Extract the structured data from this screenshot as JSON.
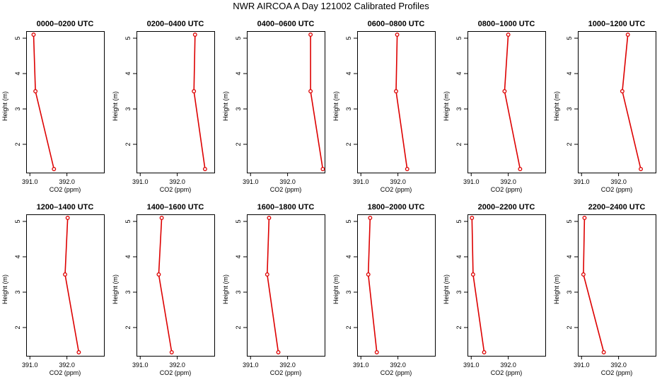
{
  "figure_title": "NWR AIRCOA A  Day 121002  Calibrated Profiles",
  "colors": {
    "line": "#dd0000",
    "axis": "#000000",
    "text": "#000000"
  },
  "chart_data": [
    {
      "type": "line",
      "title": "0000–0200 UTC",
      "xlabel": "CO2 (ppm)",
      "ylabel": "Height (m)",
      "xlim": [
        390.9,
        393.0
      ],
      "ylim": [
        1.2,
        5.2
      ],
      "xticks": [
        391.0,
        392.0
      ],
      "xtick_labels": [
        "391.0",
        "392.0"
      ],
      "yticks": [
        2,
        3,
        4,
        5
      ],
      "ytick_labels": [
        "2",
        "3",
        "4",
        "5"
      ],
      "series": [
        {
          "name": "CO2",
          "x": [
            391.65,
            391.15,
            391.1
          ],
          "y": [
            1.3,
            3.5,
            5.1
          ]
        }
      ]
    },
    {
      "type": "line",
      "title": "0200–0400 UTC",
      "xlabel": "CO2 (ppm)",
      "ylabel": "Height (m)",
      "xlim": [
        390.9,
        393.0
      ],
      "ylim": [
        1.2,
        5.2
      ],
      "xticks": [
        391.0,
        392.0
      ],
      "xtick_labels": [
        "391.0",
        "392.0"
      ],
      "yticks": [
        2,
        3,
        4,
        5
      ],
      "ytick_labels": [
        "2",
        "3",
        "4",
        "5"
      ],
      "series": [
        {
          "name": "CO2",
          "x": [
            392.75,
            392.45,
            392.48
          ],
          "y": [
            1.3,
            3.5,
            5.1
          ]
        }
      ]
    },
    {
      "type": "line",
      "title": "0400–0600 UTC",
      "xlabel": "CO2 (ppm)",
      "ylabel": "Height (m)",
      "xlim": [
        390.9,
        393.0
      ],
      "ylim": [
        1.2,
        5.2
      ],
      "xticks": [
        391.0,
        392.0
      ],
      "xtick_labels": [
        "391.0",
        "392.0"
      ],
      "yticks": [
        2,
        3,
        4,
        5
      ],
      "ytick_labels": [
        "2",
        "3",
        "4",
        "5"
      ],
      "series": [
        {
          "name": "CO2",
          "x": [
            392.95,
            392.62,
            392.62
          ],
          "y": [
            1.3,
            3.5,
            5.1
          ]
        }
      ]
    },
    {
      "type": "line",
      "title": "0600–0800 UTC",
      "xlabel": "CO2 (ppm)",
      "ylabel": "Height (m)",
      "xlim": [
        390.9,
        393.0
      ],
      "ylim": [
        1.2,
        5.2
      ],
      "xticks": [
        391.0,
        392.0
      ],
      "xtick_labels": [
        "391.0",
        "392.0"
      ],
      "yticks": [
        2,
        3,
        4,
        5
      ],
      "ytick_labels": [
        "2",
        "3",
        "4",
        "5"
      ],
      "series": [
        {
          "name": "CO2",
          "x": [
            392.25,
            391.95,
            391.98
          ],
          "y": [
            1.3,
            3.5,
            5.1
          ]
        }
      ]
    },
    {
      "type": "line",
      "title": "0800–1000 UTC",
      "xlabel": "CO2 (ppm)",
      "ylabel": "Height (m)",
      "xlim": [
        390.9,
        393.0
      ],
      "ylim": [
        1.2,
        5.2
      ],
      "xticks": [
        391.0,
        392.0
      ],
      "xtick_labels": [
        "391.0",
        "392.0"
      ],
      "yticks": [
        2,
        3,
        4,
        5
      ],
      "ytick_labels": [
        "2",
        "3",
        "4",
        "5"
      ],
      "series": [
        {
          "name": "CO2",
          "x": [
            392.32,
            391.9,
            392.0
          ],
          "y": [
            1.3,
            3.5,
            5.1
          ]
        }
      ]
    },
    {
      "type": "line",
      "title": "1000–1200 UTC",
      "xlabel": "CO2 (ppm)",
      "ylabel": "Height (m)",
      "xlim": [
        390.9,
        393.0
      ],
      "ylim": [
        1.2,
        5.2
      ],
      "xticks": [
        391.0,
        392.0
      ],
      "xtick_labels": [
        "391.0",
        "392.0"
      ],
      "yticks": [
        2,
        3,
        4,
        5
      ],
      "ytick_labels": [
        "2",
        "3",
        "4",
        "5"
      ],
      "series": [
        {
          "name": "CO2",
          "x": [
            392.6,
            392.1,
            392.25
          ],
          "y": [
            1.3,
            3.5,
            5.1
          ]
        }
      ]
    },
    {
      "type": "line",
      "title": "1200–1400 UTC",
      "xlabel": "CO2 (ppm)",
      "ylabel": "Height (m)",
      "xlim": [
        390.9,
        393.0
      ],
      "ylim": [
        1.2,
        5.2
      ],
      "xticks": [
        391.0,
        392.0
      ],
      "xtick_labels": [
        "391.0",
        "392.0"
      ],
      "yticks": [
        2,
        3,
        4,
        5
      ],
      "ytick_labels": [
        "2",
        "3",
        "4",
        "5"
      ],
      "series": [
        {
          "name": "CO2",
          "x": [
            392.32,
            391.95,
            392.02
          ],
          "y": [
            1.3,
            3.5,
            5.1
          ]
        }
      ]
    },
    {
      "type": "line",
      "title": "1400–1600 UTC",
      "xlabel": "CO2 (ppm)",
      "ylabel": "Height (m)",
      "xlim": [
        390.9,
        393.0
      ],
      "ylim": [
        1.2,
        5.2
      ],
      "xticks": [
        391.0,
        392.0
      ],
      "xtick_labels": [
        "391.0",
        "392.0"
      ],
      "yticks": [
        2,
        3,
        4,
        5
      ],
      "ytick_labels": [
        "2",
        "3",
        "4",
        "5"
      ],
      "series": [
        {
          "name": "CO2",
          "x": [
            391.85,
            391.5,
            391.58
          ],
          "y": [
            1.3,
            3.5,
            5.1
          ]
        }
      ]
    },
    {
      "type": "line",
      "title": "1600–1800 UTC",
      "xlabel": "CO2 (ppm)",
      "ylabel": "Height (m)",
      "xlim": [
        390.9,
        393.0
      ],
      "ylim": [
        1.2,
        5.2
      ],
      "xticks": [
        391.0,
        392.0
      ],
      "xtick_labels": [
        "391.0",
        "392.0"
      ],
      "yticks": [
        2,
        3,
        4,
        5
      ],
      "ytick_labels": [
        "2",
        "3",
        "4",
        "5"
      ],
      "series": [
        {
          "name": "CO2",
          "x": [
            391.75,
            391.45,
            391.5
          ],
          "y": [
            1.3,
            3.5,
            5.1
          ]
        }
      ]
    },
    {
      "type": "line",
      "title": "1800–2000 UTC",
      "xlabel": "CO2 (ppm)",
      "ylabel": "Height (m)",
      "xlim": [
        390.9,
        393.0
      ],
      "ylim": [
        1.2,
        5.2
      ],
      "xticks": [
        391.0,
        392.0
      ],
      "xtick_labels": [
        "391.0",
        "392.0"
      ],
      "yticks": [
        2,
        3,
        4,
        5
      ],
      "ytick_labels": [
        "2",
        "3",
        "4",
        "5"
      ],
      "series": [
        {
          "name": "CO2",
          "x": [
            391.43,
            391.2,
            391.25
          ],
          "y": [
            1.3,
            3.5,
            5.1
          ]
        }
      ]
    },
    {
      "type": "line",
      "title": "2000–2200 UTC",
      "xlabel": "CO2 (ppm)",
      "ylabel": "Height (m)",
      "xlim": [
        390.9,
        393.0
      ],
      "ylim": [
        1.2,
        5.2
      ],
      "xticks": [
        391.0,
        392.0
      ],
      "xtick_labels": [
        "391.0",
        "392.0"
      ],
      "yticks": [
        2,
        3,
        4,
        5
      ],
      "ytick_labels": [
        "2",
        "3",
        "4",
        "5"
      ],
      "series": [
        {
          "name": "CO2",
          "x": [
            391.35,
            391.05,
            391.02
          ],
          "y": [
            1.3,
            3.5,
            5.1
          ]
        }
      ]
    },
    {
      "type": "line",
      "title": "2200–2400 UTC",
      "xlabel": "CO2 (ppm)",
      "ylabel": "Height (m)",
      "xlim": [
        390.9,
        393.0
      ],
      "ylim": [
        1.2,
        5.2
      ],
      "xticks": [
        391.0,
        392.0
      ],
      "xtick_labels": [
        "391.0",
        "392.0"
      ],
      "yticks": [
        2,
        3,
        4,
        5
      ],
      "ytick_labels": [
        "2",
        "3",
        "4",
        "5"
      ],
      "series": [
        {
          "name": "CO2",
          "x": [
            391.6,
            391.05,
            391.08
          ],
          "y": [
            1.3,
            3.5,
            5.1
          ]
        }
      ]
    }
  ]
}
